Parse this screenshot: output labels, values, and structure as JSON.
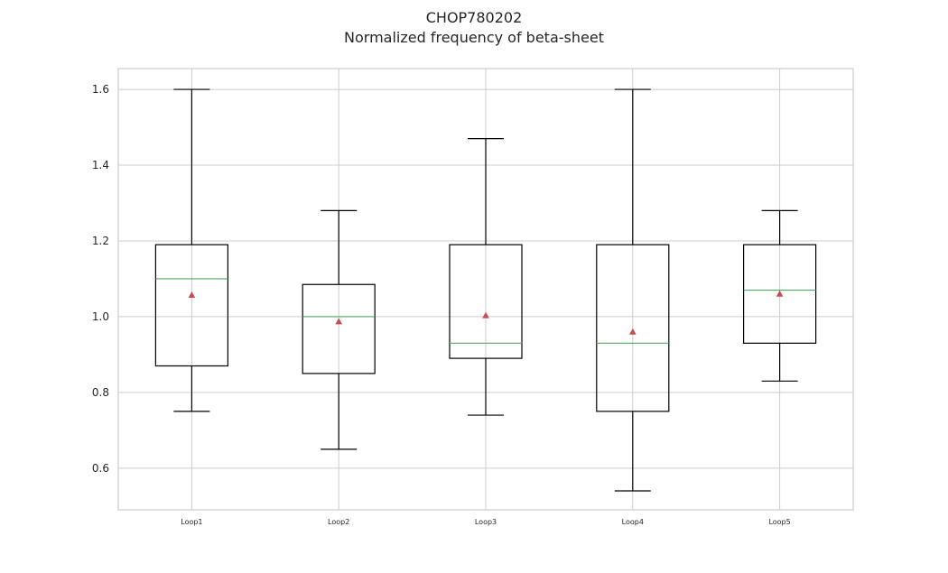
{
  "chart_data": {
    "type": "box",
    "title": "CHOP780202",
    "subtitle": "Normalized frequency of beta-sheet",
    "xlabel": "",
    "ylabel": "",
    "ylim": [
      0.49,
      1.655
    ],
    "yticks": [
      0.6,
      0.8,
      1.0,
      1.2,
      1.4,
      1.6
    ],
    "ytick_labels": [
      "0.6",
      "0.8",
      "1.0",
      "1.2",
      "1.4",
      "1.6"
    ],
    "grid": true,
    "categories": [
      "Loop1",
      "Loop2",
      "Loop3",
      "Loop4",
      "Loop5"
    ],
    "boxes": [
      {
        "name": "Loop1",
        "whisker_low": 0.75,
        "q1": 0.87,
        "median": 1.1,
        "q3": 1.19,
        "whisker_high": 1.6,
        "mean": 1.057
      },
      {
        "name": "Loop2",
        "whisker_low": 0.65,
        "q1": 0.85,
        "median": 1.0,
        "q3": 1.085,
        "whisker_high": 1.28,
        "mean": 0.987
      },
      {
        "name": "Loop3",
        "whisker_low": 0.74,
        "q1": 0.89,
        "median": 0.93,
        "q3": 1.19,
        "whisker_high": 1.47,
        "mean": 1.003
      },
      {
        "name": "Loop4",
        "whisker_low": 0.54,
        "q1": 0.75,
        "median": 0.93,
        "q3": 1.19,
        "whisker_high": 1.6,
        "mean": 0.96
      },
      {
        "name": "Loop5",
        "whisker_low": 0.83,
        "q1": 0.93,
        "median": 1.07,
        "q3": 1.19,
        "whisker_high": 1.28,
        "mean": 1.06
      }
    ],
    "colors": {
      "box": "#000000",
      "median": "#55a868",
      "mean_marker": "#c44e52",
      "grid": "#cccccc",
      "frame": "#cccccc"
    }
  }
}
